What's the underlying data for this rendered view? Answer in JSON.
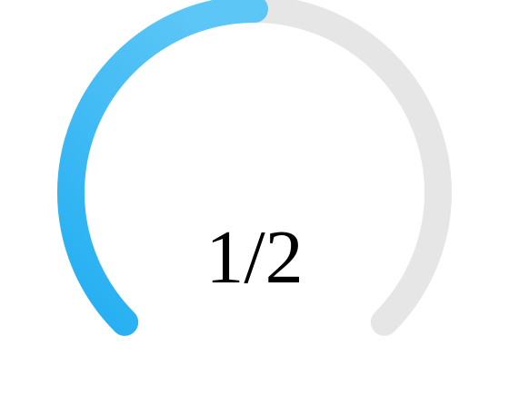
{
  "gauge": {
    "label": "1/2",
    "value": 1,
    "max": 2,
    "fraction": 0.5,
    "colors": {
      "progress_start": "#5cc6f6",
      "progress_end": "#22aef2",
      "track": "#e6e6e6",
      "label": "#000000"
    }
  }
}
